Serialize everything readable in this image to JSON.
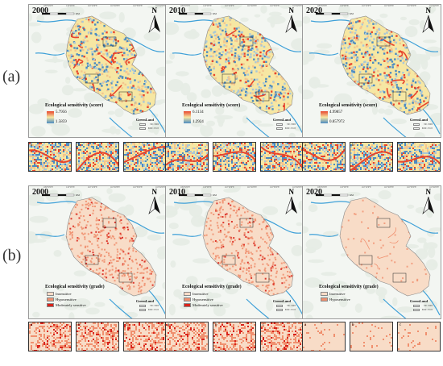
{
  "row_labels": [
    "(a)",
    "(b)"
  ],
  "coord_ticks_top": [
    "109°50'0\"E",
    "110°0'0\"E",
    "110°10'0\"E",
    "110°20'0\"E",
    "110°30'0\"E",
    "110°40'0\"E"
  ],
  "scale_unit": "KM",
  "north_label": "N",
  "inset_labels": [
    "a",
    "b",
    "c"
  ],
  "greenland": {
    "title": "GreenLand",
    "items": [
      "<90 / 8000",
      "8000~17105"
    ]
  },
  "colors": {
    "score_high": "#e8452c",
    "score_mid": "#f6e7a3",
    "score_low": "#4a8bc2",
    "insensitive": "#f8dcc7",
    "hyposensitive": "#f0906f",
    "moderately": "#d9231b",
    "water": "#3ea0d8",
    "background_land": "#e6ece4"
  },
  "score_panels": [
    {
      "year": "2000",
      "legend_title": "Ecological sensitivity (score)",
      "high": "5.7956",
      "low": "1.5859"
    },
    {
      "year": "2010",
      "legend_title": "Ecological sensitivity (score)",
      "high": "6.1134",
      "low": "1.2924"
    },
    {
      "year": "2020",
      "legend_title": "Ecological sensitivity (score)",
      "high": "4.99857",
      "low": "0.857972"
    }
  ],
  "grade_panels": [
    {
      "year": "2000",
      "legend_title": "Ecological sensitivity (grade)",
      "classes": [
        "Insensitive",
        "Hyposensitive",
        "Moderately sensitive"
      ]
    },
    {
      "year": "2010",
      "legend_title": "Ecological sensitivity (grade)",
      "classes": [
        "Insensitive",
        "Hyposensitive",
        "Moderately sensitive"
      ]
    },
    {
      "year": "2020",
      "legend_title": "Ecological sensitivity (grade)",
      "classes": [
        "Insensitive",
        "Hyposensitive"
      ]
    }
  ]
}
